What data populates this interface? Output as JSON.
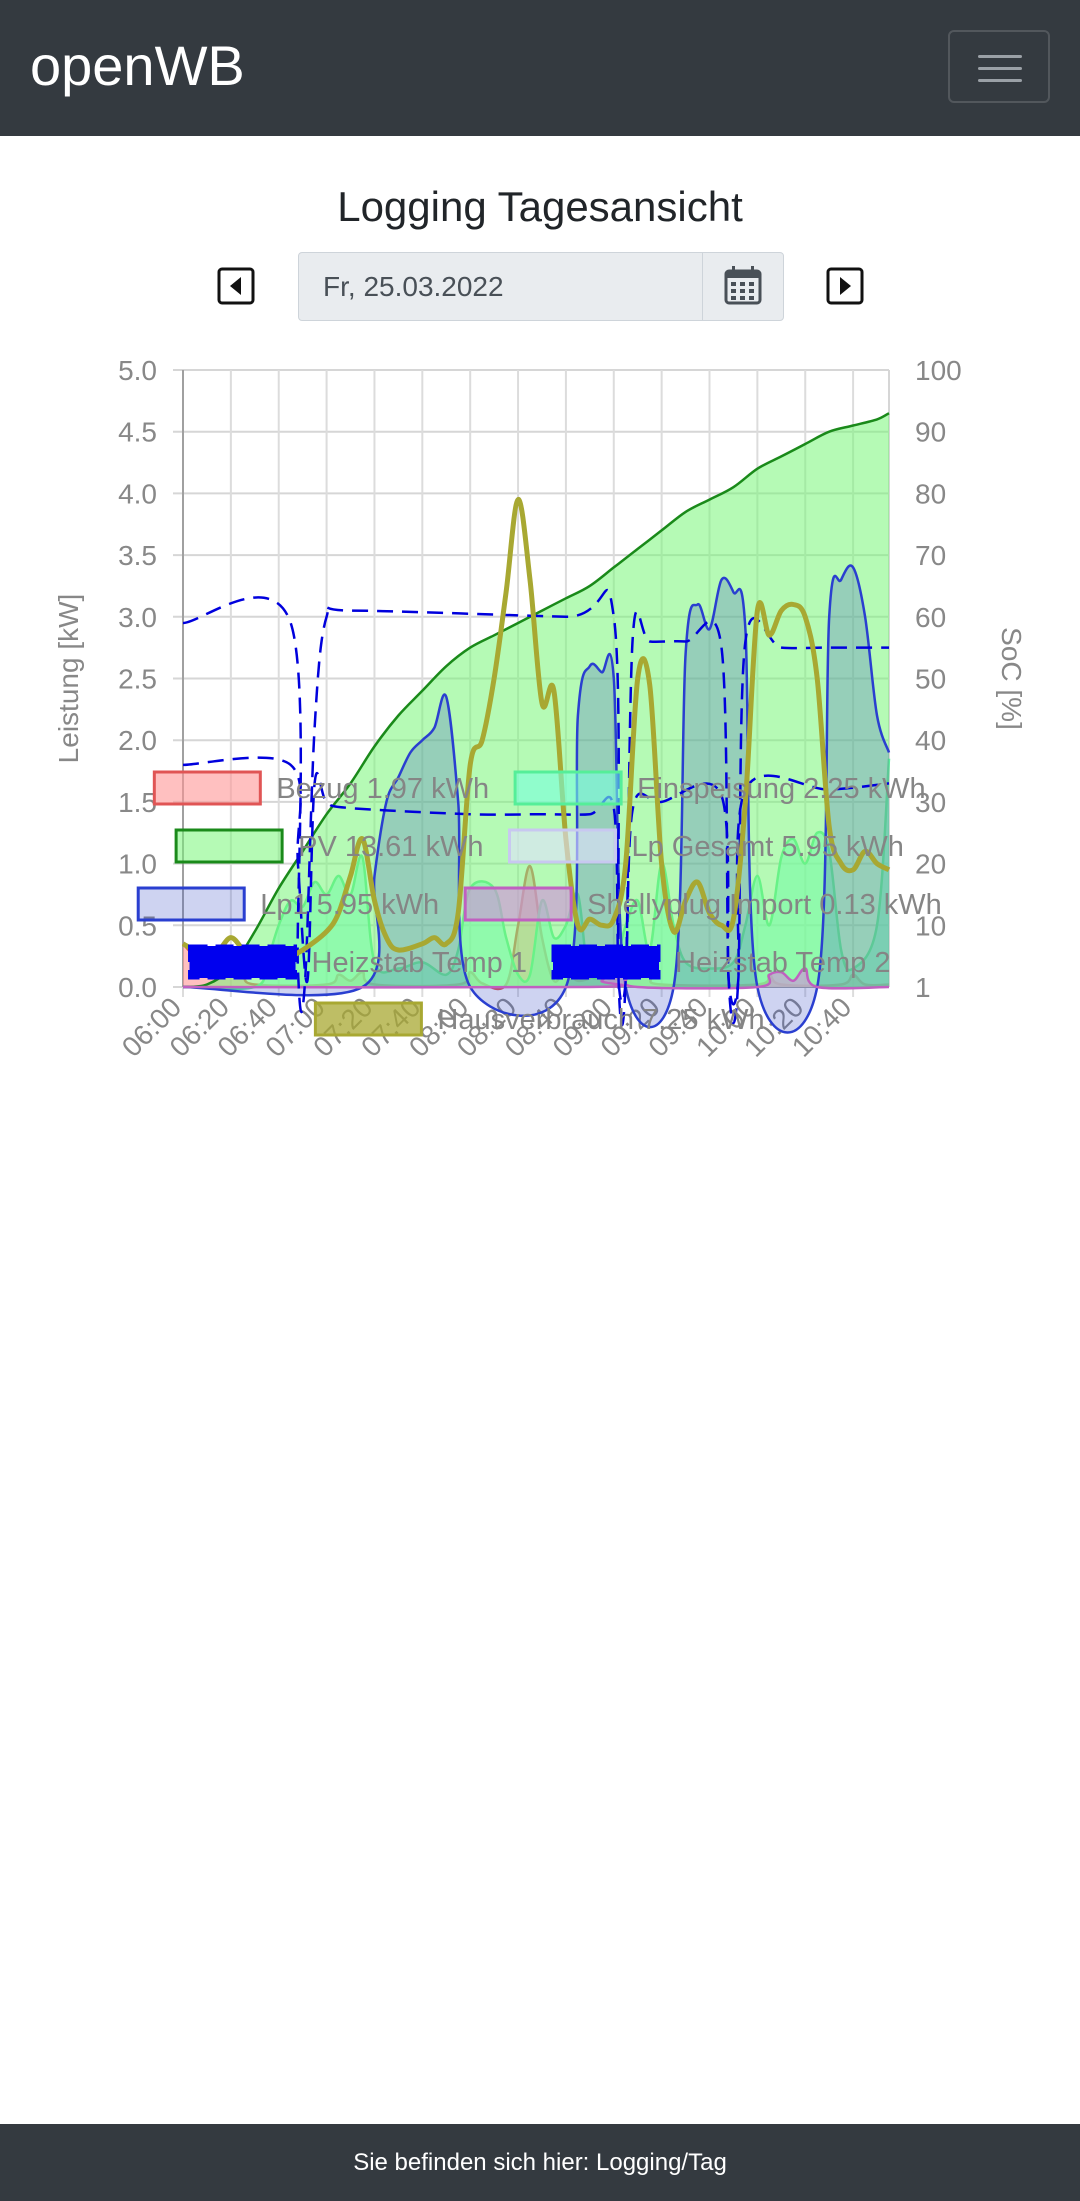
{
  "navbar": {
    "brand": "openWB",
    "menu_icon": "hamburger-menu-icon"
  },
  "page": {
    "title": "Logging Tagesansicht",
    "date_value": "Fr, 25.03.2022",
    "prev_icon": "caret-left-square-icon",
    "next_icon": "caret-right-square-icon",
    "calendar_icon": "calendar-icon"
  },
  "chart_data": {
    "type": "area",
    "x_ticks": [
      "06:00",
      "06:20",
      "06:40",
      "07:00",
      "07:20",
      "07:40",
      "08:00",
      "08:20",
      "08:40",
      "09:00",
      "09:20",
      "09:40",
      "10:00",
      "10:20",
      "10:40"
    ],
    "x_range": [
      "06:00",
      "10:55"
    ],
    "ylabel_left": "Leistung [kW]",
    "ylabel_right": "SoC [%]",
    "ylim_left": [
      0,
      5
    ],
    "left_ticks": [
      "5.0",
      "4.5",
      "4.0",
      "3.5",
      "3.0",
      "2.5",
      "2.0",
      "1.5",
      "1.0",
      "0.5",
      "0.0"
    ],
    "right_ticks": [
      "100",
      "90",
      "80",
      "70",
      "60",
      "50",
      "40",
      "30",
      "20",
      "10",
      "1"
    ],
    "grid": true,
    "legend_position": "bottom",
    "series": [
      {
        "name": "Bezug 1.97 kWh",
        "color": "#e05555",
        "fill": "rgba(255,150,150,0.6)",
        "style": "area",
        "axis": "left",
        "points": [
          [
            "06:00",
            0.35
          ],
          [
            "06:05",
            0.25
          ],
          [
            "06:10",
            0.22
          ],
          [
            "06:15",
            0.2
          ],
          [
            "06:20",
            0.2
          ],
          [
            "06:25",
            0.1
          ],
          [
            "06:30",
            0.02
          ],
          [
            "07:00",
            0.02
          ],
          [
            "07:05",
            0.1
          ],
          [
            "07:10",
            0.05
          ],
          [
            "07:15",
            0.12
          ],
          [
            "07:20",
            0.02
          ],
          [
            "07:55",
            0.02
          ],
          [
            "08:00",
            0.12
          ],
          [
            "08:05",
            0.03
          ],
          [
            "08:15",
            0.02
          ],
          [
            "08:20",
            0.5
          ],
          [
            "08:25",
            0.98
          ],
          [
            "08:30",
            0.4
          ],
          [
            "08:35",
            0.05
          ],
          [
            "08:40",
            0.15
          ],
          [
            "08:45",
            0.05
          ],
          [
            "08:55",
            0.1
          ],
          [
            "09:00",
            0.05
          ],
          [
            "09:10",
            0.2
          ],
          [
            "09:15",
            0.08
          ],
          [
            "09:20",
            0.02
          ],
          [
            "10:00",
            0.02
          ],
          [
            "10:05",
            0.1
          ],
          [
            "10:10",
            0.02
          ],
          [
            "10:35",
            0.02
          ],
          [
            "10:40",
            0.1
          ],
          [
            "10:45",
            0.02
          ],
          [
            "10:55",
            0.02
          ]
        ]
      },
      {
        "name": "Einspeisung 2.25 kWh",
        "color": "#55ee99",
        "fill": "rgba(120,255,220,0.6)",
        "style": "area",
        "axis": "left",
        "points": [
          [
            "06:00",
            0
          ],
          [
            "06:30",
            0
          ],
          [
            "06:35",
            0.2
          ],
          [
            "06:40",
            0.5
          ],
          [
            "06:45",
            0.7
          ],
          [
            "06:50",
            0.65
          ],
          [
            "06:55",
            0.85
          ],
          [
            "07:00",
            0.75
          ],
          [
            "07:05",
            0.9
          ],
          [
            "07:10",
            0.75
          ],
          [
            "07:15",
            1.05
          ],
          [
            "07:20",
            0.2
          ],
          [
            "07:30",
            0.15
          ],
          [
            "07:40",
            0.2
          ],
          [
            "07:50",
            0.1
          ],
          [
            "07:55",
            0.3
          ],
          [
            "08:00",
            0.8
          ],
          [
            "08:10",
            0.8
          ],
          [
            "08:15",
            0.4
          ],
          [
            "08:20",
            0.1
          ],
          [
            "08:25",
            0.1
          ],
          [
            "08:30",
            0.7
          ],
          [
            "08:35",
            0.4
          ],
          [
            "08:40",
            0.5
          ],
          [
            "08:45",
            0.75
          ],
          [
            "08:50",
            0.1
          ],
          [
            "09:00",
            0.2
          ],
          [
            "09:05",
            0.5
          ],
          [
            "09:10",
            0.7
          ],
          [
            "09:15",
            0.3
          ],
          [
            "09:20",
            1.0
          ],
          [
            "09:25",
            0.5
          ],
          [
            "09:30",
            0.2
          ],
          [
            "09:40",
            0.15
          ],
          [
            "09:50",
            0.2
          ],
          [
            "09:55",
            0.5
          ],
          [
            "10:00",
            0.9
          ],
          [
            "10:05",
            0.5
          ],
          [
            "10:10",
            1.05
          ],
          [
            "10:15",
            1.2
          ],
          [
            "10:20",
            1.0
          ],
          [
            "10:25",
            1.25
          ],
          [
            "10:30",
            1.1
          ],
          [
            "10:35",
            0.3
          ],
          [
            "10:40",
            0.15
          ],
          [
            "10:50",
            0.5
          ],
          [
            "10:55",
            1.85
          ]
        ]
      },
      {
        "name": "PV 13.61 kWh",
        "color": "#1a8a1a",
        "fill": "rgba(120,245,120,0.55)",
        "style": "area",
        "axis": "left",
        "points": [
          [
            "06:00",
            0
          ],
          [
            "06:10",
            0.02
          ],
          [
            "06:20",
            0.15
          ],
          [
            "06:30",
            0.45
          ],
          [
            "06:40",
            0.8
          ],
          [
            "06:50",
            1.1
          ],
          [
            "07:00",
            1.4
          ],
          [
            "07:10",
            1.65
          ],
          [
            "07:20",
            1.95
          ],
          [
            "07:30",
            2.2
          ],
          [
            "07:40",
            2.4
          ],
          [
            "07:50",
            2.6
          ],
          [
            "08:00",
            2.75
          ],
          [
            "08:10",
            2.85
          ],
          [
            "08:20",
            2.95
          ],
          [
            "08:30",
            3.05
          ],
          [
            "08:40",
            3.15
          ],
          [
            "08:50",
            3.25
          ],
          [
            "09:00",
            3.4
          ],
          [
            "09:10",
            3.55
          ],
          [
            "09:20",
            3.7
          ],
          [
            "09:30",
            3.85
          ],
          [
            "09:40",
            3.95
          ],
          [
            "09:50",
            4.05
          ],
          [
            "10:00",
            4.2
          ],
          [
            "10:10",
            4.3
          ],
          [
            "10:20",
            4.4
          ],
          [
            "10:30",
            4.5
          ],
          [
            "10:40",
            4.55
          ],
          [
            "10:50",
            4.6
          ],
          [
            "10:55",
            4.65
          ]
        ]
      },
      {
        "name": "Lp Gesamt 5.95 kWh",
        "color": "#c8c8f0",
        "fill": "rgba(225,225,255,0.6)",
        "style": "area",
        "axis": "left",
        "points": []
      },
      {
        "name": "Lp1 5.95 kWh",
        "color": "#2a3fd0",
        "fill": "rgba(60,80,200,0.25)",
        "style": "area",
        "axis": "left",
        "points": [
          [
            "06:00",
            0
          ],
          [
            "07:15",
            0
          ],
          [
            "07:20",
            0.9
          ],
          [
            "07:25",
            1.5
          ],
          [
            "07:30",
            1.7
          ],
          [
            "07:35",
            1.9
          ],
          [
            "07:40",
            2.0
          ],
          [
            "07:45",
            2.1
          ],
          [
            "07:50",
            2.35
          ],
          [
            "07:55",
            1.5
          ],
          [
            "08:00",
            0
          ],
          [
            "08:40",
            0
          ],
          [
            "08:45",
            2.2
          ],
          [
            "08:50",
            2.6
          ],
          [
            "08:55",
            2.55
          ],
          [
            "09:00",
            2.5
          ],
          [
            "09:05",
            0
          ],
          [
            "09:25",
            0
          ],
          [
            "09:30",
            2.7
          ],
          [
            "09:35",
            3.1
          ],
          [
            "09:40",
            2.9
          ],
          [
            "09:45",
            3.3
          ],
          [
            "09:50",
            3.2
          ],
          [
            "09:55",
            2.9
          ],
          [
            "10:00",
            0
          ],
          [
            "10:25",
            0
          ],
          [
            "10:30",
            3.0
          ],
          [
            "10:35",
            3.3
          ],
          [
            "10:40",
            3.4
          ],
          [
            "10:45",
            3.0
          ],
          [
            "10:50",
            2.2
          ],
          [
            "10:55",
            1.9
          ]
        ]
      },
      {
        "name": "Shellyplug Import 0.13 kWh",
        "color": "#c060c0",
        "fill": "rgba(210,140,220,0.6)",
        "style": "area",
        "axis": "left",
        "points": [
          [
            "06:00",
            0
          ],
          [
            "08:50",
            0
          ],
          [
            "08:55",
            0.05
          ],
          [
            "09:00",
            0.15
          ],
          [
            "09:05",
            0.08
          ],
          [
            "09:10",
            0
          ],
          [
            "10:00",
            0
          ],
          [
            "10:05",
            0.1
          ],
          [
            "10:10",
            0.12
          ],
          [
            "10:15",
            0.05
          ],
          [
            "10:20",
            0.15
          ],
          [
            "10:25",
            0
          ],
          [
            "10:55",
            0
          ]
        ]
      },
      {
        "name": "Heizstab Temp 1",
        "color": "#0000dd",
        "style": "dashed",
        "axis": "right",
        "points": [
          [
            "06:00",
            59
          ],
          [
            "06:45",
            59
          ],
          [
            "06:48",
            3
          ],
          [
            "06:51",
            1
          ],
          [
            "06:55",
            42
          ],
          [
            "07:00",
            60
          ],
          [
            "07:10",
            61
          ],
          [
            "08:40",
            60
          ],
          [
            "09:00",
            60
          ],
          [
            "09:02",
            1
          ],
          [
            "09:05",
            1
          ],
          [
            "09:08",
            57
          ],
          [
            "09:15",
            56
          ],
          [
            "09:30",
            56
          ],
          [
            "09:45",
            55
          ],
          [
            "09:48",
            1
          ],
          [
            "09:52",
            1
          ],
          [
            "09:55",
            56
          ],
          [
            "10:10",
            55
          ],
          [
            "10:30",
            55
          ],
          [
            "10:55",
            55
          ]
        ]
      },
      {
        "name": "Heizstab Temp 2",
        "color": "#0000dd",
        "style": "dashed",
        "axis": "right",
        "points": [
          [
            "06:00",
            36
          ],
          [
            "06:45",
            36
          ],
          [
            "06:48",
            20
          ],
          [
            "06:52",
            1
          ],
          [
            "06:55",
            33
          ],
          [
            "07:00",
            30
          ],
          [
            "07:10",
            29
          ],
          [
            "08:00",
            28
          ],
          [
            "08:30",
            28
          ],
          [
            "08:50",
            28
          ],
          [
            "09:00",
            29
          ],
          [
            "09:02",
            1
          ],
          [
            "09:05",
            1
          ],
          [
            "09:08",
            29
          ],
          [
            "09:20",
            30
          ],
          [
            "09:45",
            31
          ],
          [
            "09:48",
            1
          ],
          [
            "09:52",
            1
          ],
          [
            "09:55",
            32
          ],
          [
            "10:30",
            32
          ],
          [
            "10:55",
            33
          ]
        ]
      },
      {
        "name": "Hausverbrauch 7.25 kWh",
        "color": "#a8a832",
        "fill": "rgba(168,168,50,0.75)",
        "style": "line",
        "axis": "left",
        "points": [
          [
            "06:00",
            0.35
          ],
          [
            "06:10",
            0.25
          ],
          [
            "06:15",
            0.3
          ],
          [
            "06:20",
            0.4
          ],
          [
            "06:25",
            0.3
          ],
          [
            "06:30",
            0.15
          ],
          [
            "06:40",
            0.2
          ],
          [
            "06:50",
            0.3
          ],
          [
            "07:00",
            0.45
          ],
          [
            "07:05",
            0.6
          ],
          [
            "07:10",
            0.9
          ],
          [
            "07:15",
            1.2
          ],
          [
            "07:20",
            0.7
          ],
          [
            "07:25",
            0.4
          ],
          [
            "07:30",
            0.3
          ],
          [
            "07:40",
            0.35
          ],
          [
            "07:45",
            0.4
          ],
          [
            "07:50",
            0.35
          ],
          [
            "07:55",
            0.6
          ],
          [
            "08:00",
            1.8
          ],
          [
            "08:05",
            2.0
          ],
          [
            "08:10",
            2.5
          ],
          [
            "08:15",
            3.2
          ],
          [
            "08:20",
            3.95
          ],
          [
            "08:25",
            3.3
          ],
          [
            "08:30",
            2.3
          ],
          [
            "08:35",
            2.4
          ],
          [
            "08:40",
            1.2
          ],
          [
            "08:45",
            0.5
          ],
          [
            "08:50",
            0.55
          ],
          [
            "08:55",
            0.5
          ],
          [
            "09:00",
            0.55
          ],
          [
            "09:05",
            1.0
          ],
          [
            "09:10",
            2.5
          ],
          [
            "09:15",
            2.45
          ],
          [
            "09:20",
            1.0
          ],
          [
            "09:25",
            0.45
          ],
          [
            "09:30",
            0.7
          ],
          [
            "09:35",
            0.85
          ],
          [
            "09:40",
            0.6
          ],
          [
            "09:45",
            0.5
          ],
          [
            "09:50",
            0.55
          ],
          [
            "09:55",
            1.5
          ],
          [
            "10:00",
            3.05
          ],
          [
            "10:05",
            2.85
          ],
          [
            "10:10",
            3.05
          ],
          [
            "10:15",
            3.1
          ],
          [
            "10:20",
            3.0
          ],
          [
            "10:25",
            2.5
          ],
          [
            "10:30",
            1.3
          ],
          [
            "10:35",
            1.0
          ],
          [
            "10:40",
            0.95
          ],
          [
            "10:45",
            1.1
          ],
          [
            "10:50",
            1.0
          ],
          [
            "10:55",
            0.95
          ]
        ]
      }
    ]
  },
  "footer": {
    "text": "Sie befinden sich hier: Logging/Tag"
  }
}
